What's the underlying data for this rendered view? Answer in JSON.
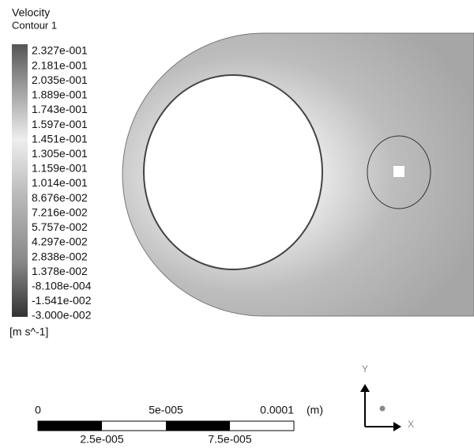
{
  "legend": {
    "title": "Velocity",
    "subtitle": "Contour 1",
    "levels": [
      "2.327e-001",
      "2.181e-001",
      "2.035e-001",
      "1.889e-001",
      "1.743e-001",
      "1.597e-001",
      "1.451e-001",
      "1.305e-001",
      "1.159e-001",
      "1.014e-001",
      "8.676e-002",
      "7.216e-002",
      "5.757e-002",
      "4.297e-002",
      "2.838e-002",
      "1.378e-002",
      "-8.108e-004",
      "-1.541e-002",
      "-3.000e-002"
    ],
    "unit": "[m s^-1]"
  },
  "scale_bar": {
    "top_labels": [
      "0",
      "5e-005",
      "0.0001",
      "(m)"
    ],
    "bottom_labels": [
      "2.5e-005",
      "7.5e-005"
    ]
  },
  "triad": {
    "y": "Y",
    "x": "X"
  }
}
